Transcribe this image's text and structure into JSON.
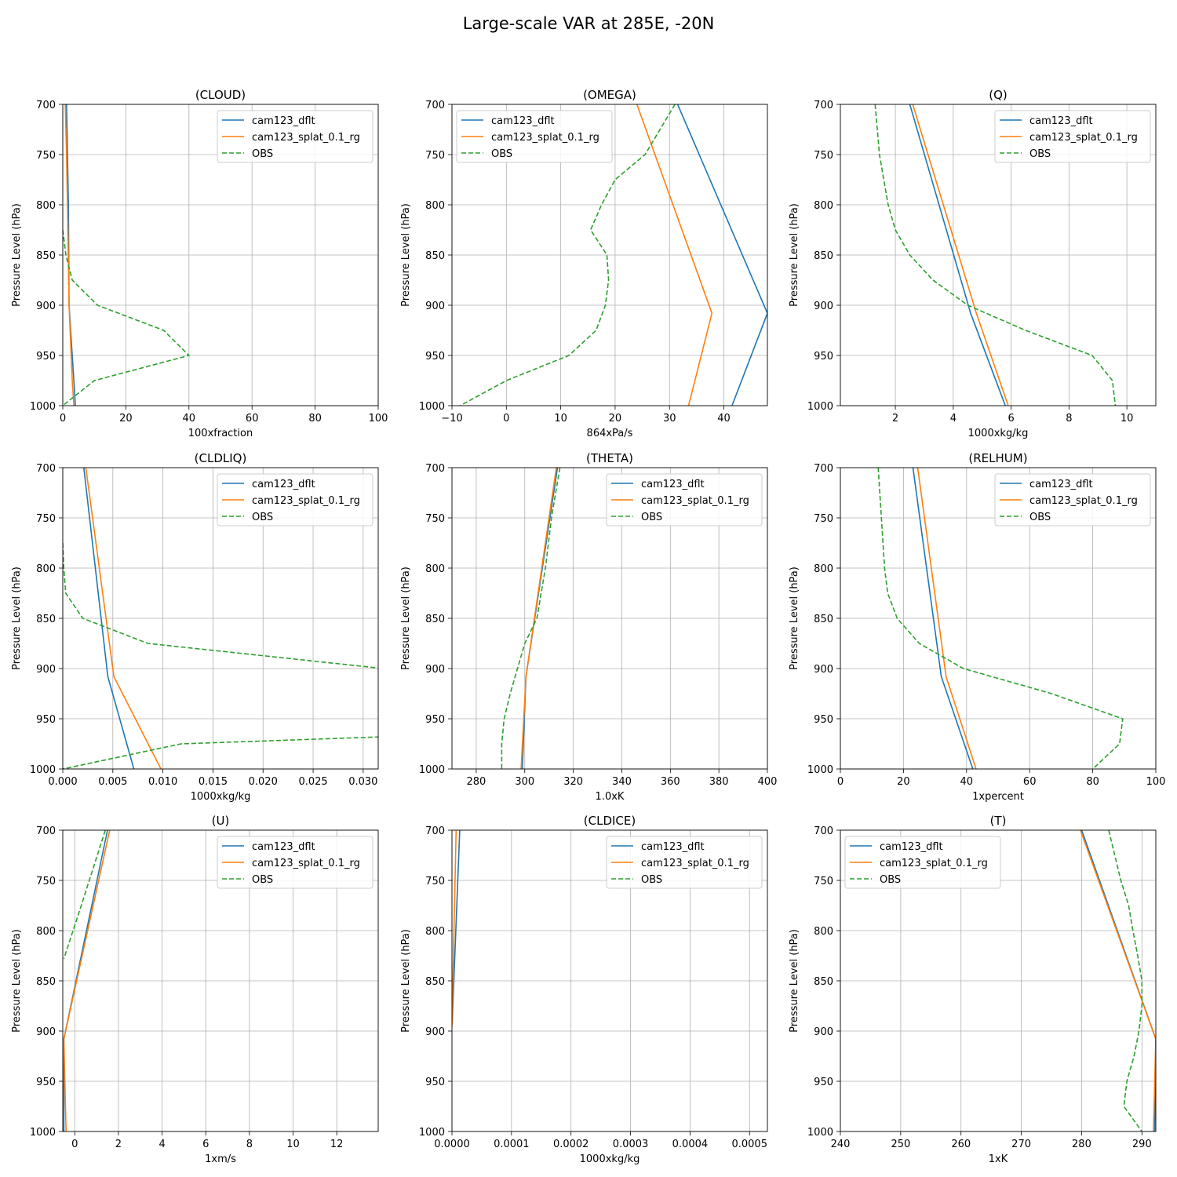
{
  "figure": {
    "title": "Large-scale VAR at 285E, -20N"
  },
  "legend_labels": [
    "cam123_dflt",
    "cam123_splat_0.1_rg",
    "OBS"
  ],
  "colors": {
    "dflt": "#1f77b4",
    "splat": "#ff7f0e",
    "obs": "#2ca02c",
    "grid": "#b0b0b0"
  },
  "chart_data": [
    {
      "type": "line",
      "title": "(CLOUD)",
      "xlabel": "100xfraction",
      "ylabel": "Pressure Level (hPa)",
      "xlim": [
        0,
        100
      ],
      "xticks": [
        0,
        20,
        40,
        60,
        80,
        100
      ],
      "xtick_labels": [
        "0",
        "20",
        "40",
        "60",
        "80",
        "100"
      ],
      "ylim": [
        1000,
        700
      ],
      "yticks": [
        700,
        750,
        800,
        850,
        900,
        950,
        1000
      ],
      "legend": "top-right",
      "series": [
        {
          "name": "cam123_dflt",
          "style": "solid",
          "x": [
            1.2,
            1.5,
            1.8,
            2.0,
            3.5,
            4.0
          ],
          "y": [
            700,
            750,
            800,
            900,
            975,
            1000
          ]
        },
        {
          "name": "cam123_splat_0.1_rg",
          "style": "solid",
          "x": [
            0.8,
            1.2,
            1.5,
            2.0,
            3.0,
            3.5
          ],
          "y": [
            700,
            750,
            800,
            900,
            975,
            1000
          ]
        },
        {
          "name": "OBS",
          "style": "dashed",
          "x": [
            0,
            1,
            3,
            11,
            32,
            40,
            10,
            0
          ],
          "y": [
            825,
            850,
            875,
            900,
            925,
            950,
            975,
            1000
          ]
        }
      ]
    },
    {
      "type": "line",
      "title": "(OMEGA)",
      "xlabel": "864xPa/s",
      "ylabel": "Pressure Level (hPa)",
      "xlim": [
        -10,
        48
      ],
      "xticks": [
        -10,
        0,
        10,
        20,
        30,
        40
      ],
      "xtick_labels": [
        "−10",
        "0",
        "10",
        "20",
        "30",
        "40"
      ],
      "ylim": [
        1000,
        700
      ],
      "yticks": [
        700,
        750,
        800,
        850,
        900,
        950,
        1000
      ],
      "legend": "top-left",
      "series": [
        {
          "name": "cam123_dflt",
          "style": "solid",
          "x": [
            31.5,
            48,
            41.5
          ],
          "y": [
            700,
            908,
            1000
          ]
        },
        {
          "name": "cam123_splat_0.1_rg",
          "style": "solid",
          "x": [
            24,
            37.8,
            33.5
          ],
          "y": [
            700,
            908,
            1000
          ]
        },
        {
          "name": "OBS",
          "style": "dashed",
          "x": [
            31,
            25.5,
            20,
            17.5,
            15.5,
            18.5,
            18.8,
            18.2,
            16.5,
            11.5,
            0,
            -8.5
          ],
          "y": [
            700,
            750,
            775,
            800,
            825,
            850,
            875,
            900,
            925,
            950,
            975,
            1000
          ]
        }
      ]
    },
    {
      "type": "line",
      "title": "(Q)",
      "xlabel": "1000xkg/kg",
      "ylabel": "Pressure Level (hPa)",
      "xlim": [
        0.1,
        11
      ],
      "xticks": [
        2,
        4,
        6,
        8,
        10
      ],
      "xtick_labels": [
        "2",
        "4",
        "6",
        "8",
        "10"
      ],
      "ylim": [
        1000,
        700
      ],
      "yticks": [
        700,
        750,
        800,
        850,
        900,
        950,
        1000
      ],
      "legend": "top-right",
      "series": [
        {
          "name": "cam123_dflt",
          "style": "solid",
          "x": [
            2.5,
            4.6,
            5.8
          ],
          "y": [
            700,
            908,
            1000
          ]
        },
        {
          "name": "cam123_splat_0.1_rg",
          "style": "solid",
          "x": [
            2.6,
            4.8,
            5.9
          ],
          "y": [
            700,
            908,
            1000
          ]
        },
        {
          "name": "OBS",
          "style": "dashed",
          "x": [
            1.3,
            1.45,
            1.6,
            1.75,
            2.0,
            2.5,
            3.3,
            4.5,
            6.5,
            8.8,
            9.5,
            9.6
          ],
          "y": [
            700,
            750,
            775,
            800,
            825,
            850,
            875,
            900,
            925,
            950,
            975,
            1000
          ]
        }
      ]
    },
    {
      "type": "line",
      "title": "(CLDLIQ)",
      "xlabel": "1000xkg/kg",
      "ylabel": "Pressure Level (hPa)",
      "xlim": [
        0,
        0.0315
      ],
      "xticks": [
        0,
        0.005,
        0.01,
        0.015,
        0.02,
        0.025,
        0.03
      ],
      "xtick_labels": [
        "0.000",
        "0.005",
        "0.010",
        "0.015",
        "0.020",
        "0.025",
        "0.030"
      ],
      "ylim": [
        1000,
        700
      ],
      "yticks": [
        700,
        750,
        800,
        850,
        900,
        950,
        1000
      ],
      "legend": "top-right",
      "series": [
        {
          "name": "cam123_dflt",
          "style": "solid",
          "x": [
            0.0021,
            0.0045,
            0.0071
          ],
          "y": [
            700,
            908,
            1000
          ]
        },
        {
          "name": "cam123_splat_0.1_rg",
          "style": "solid",
          "x": [
            0.0023,
            0.0051,
            0.0098
          ],
          "y": [
            700,
            908,
            1000
          ]
        },
        {
          "name": "OBS",
          "style": "dashed",
          "x": [
            0,
            0.0001,
            0.0003,
            0.002,
            0.0085,
            0.032,
            0.032,
            0.0118,
            0
          ],
          "y": [
            775,
            800,
            825,
            850,
            875,
            900,
            968,
            975,
            1000
          ]
        }
      ]
    },
    {
      "type": "line",
      "title": "(THETA)",
      "xlabel": "1.0xK",
      "ylabel": "Pressure Level (hPa)",
      "xlim": [
        270,
        400
      ],
      "xticks": [
        280,
        300,
        320,
        340,
        360,
        380,
        400
      ],
      "xtick_labels": [
        "280",
        "300",
        "320",
        "340",
        "360",
        "380",
        "400"
      ],
      "ylim": [
        1000,
        700
      ],
      "yticks": [
        700,
        750,
        800,
        850,
        900,
        950,
        1000
      ],
      "legend": "top-right",
      "series": [
        {
          "name": "cam123_dflt",
          "style": "solid",
          "x": [
            313.5,
            300.5,
            299
          ],
          "y": [
            700,
            908,
            1000
          ]
        },
        {
          "name": "cam123_splat_0.1_rg",
          "style": "solid",
          "x": [
            313,
            300.5,
            298.5
          ],
          "y": [
            700,
            908,
            1000
          ]
        },
        {
          "name": "OBS",
          "style": "dashed",
          "x": [
            314.5,
            311,
            308.5,
            305,
            300,
            297,
            294,
            291.5,
            290.5,
            290.5,
            290.5
          ],
          "y": [
            700,
            750,
            800,
            850,
            875,
            900,
            925,
            950,
            975,
            990,
            1000
          ]
        }
      ]
    },
    {
      "type": "line",
      "title": "(RELHUM)",
      "xlabel": "1xpercent",
      "ylabel": "Pressure Level (hPa)",
      "xlim": [
        0,
        100
      ],
      "xticks": [
        0,
        20,
        40,
        60,
        80,
        100
      ],
      "xtick_labels": [
        "0",
        "20",
        "40",
        "60",
        "80",
        "100"
      ],
      "ylim": [
        1000,
        700
      ],
      "yticks": [
        700,
        750,
        800,
        850,
        900,
        950,
        1000
      ],
      "legend": "top-right",
      "series": [
        {
          "name": "cam123_dflt",
          "style": "solid",
          "x": [
            23,
            32,
            42
          ],
          "y": [
            700,
            908,
            1000
          ]
        },
        {
          "name": "cam123_splat_0.1_rg",
          "style": "solid",
          "x": [
            24.5,
            33.5,
            43
          ],
          "y": [
            700,
            908,
            1000
          ]
        },
        {
          "name": "OBS",
          "style": "dashed",
          "x": [
            12,
            13,
            14,
            15,
            18,
            25,
            39,
            67,
            89.5,
            88.5,
            80
          ],
          "y": [
            700,
            750,
            800,
            825,
            850,
            875,
            900,
            925,
            950,
            975,
            1000
          ]
        }
      ]
    },
    {
      "type": "line",
      "title": "(U)",
      "xlabel": "1xm/s",
      "ylabel": "Pressure Level (hPa)",
      "xlim": [
        -0.55,
        13.9
      ],
      "xticks": [
        0,
        2,
        4,
        6,
        8,
        10,
        12
      ],
      "xtick_labels": [
        "0",
        "2",
        "4",
        "6",
        "8",
        "10",
        "12"
      ],
      "ylim": [
        1000,
        700
      ],
      "yticks": [
        700,
        750,
        800,
        850,
        900,
        950,
        1000
      ],
      "legend": "top-right",
      "series": [
        {
          "name": "cam123_dflt",
          "style": "solid",
          "x": [
            1.5,
            -0.5,
            -0.5
          ],
          "y": [
            700,
            908,
            1000
          ]
        },
        {
          "name": "cam123_splat_0.1_rg",
          "style": "solid",
          "x": [
            1.6,
            -0.5,
            -0.4
          ],
          "y": [
            700,
            908,
            1000
          ]
        },
        {
          "name": "OBS",
          "style": "dashed",
          "x": [
            1.4,
            0.3,
            -0.5
          ],
          "y": [
            700,
            775,
            828
          ]
        }
      ]
    },
    {
      "type": "line",
      "title": "(CLDICE)",
      "xlabel": "1000xkg/kg",
      "ylabel": "Pressure Level (hPa)",
      "xlim": [
        0,
        0.00053
      ],
      "xticks": [
        0,
        0.0001,
        0.0002,
        0.0003,
        0.0004,
        0.0005
      ],
      "xtick_labels": [
        "0.0000",
        "0.0001",
        "0.0002",
        "0.0003",
        "0.0004",
        "0.0005"
      ],
      "ylim": [
        1000,
        700
      ],
      "yticks": [
        700,
        750,
        800,
        850,
        900,
        950,
        1000
      ],
      "legend": "top-right",
      "series": [
        {
          "name": "cam123_dflt",
          "style": "solid",
          "x": [
            1.3e-05,
            5e-07
          ],
          "y": [
            700,
            890
          ]
        },
        {
          "name": "cam123_splat_0.1_rg",
          "style": "solid",
          "x": [
            7e-06,
            0
          ],
          "y": [
            700,
            895
          ]
        },
        {
          "name": "OBS",
          "style": "dashed",
          "x": [],
          "y": []
        }
      ]
    },
    {
      "type": "line",
      "title": "(T)",
      "xlabel": "1xK",
      "ylabel": "Pressure Level (hPa)",
      "xlim": [
        240,
        292.3
      ],
      "xticks": [
        240,
        250,
        260,
        270,
        280,
        290
      ],
      "xtick_labels": [
        "240",
        "250",
        "260",
        "270",
        "280",
        "290"
      ],
      "ylim": [
        1000,
        700
      ],
      "yticks": [
        700,
        750,
        800,
        850,
        900,
        950,
        1000
      ],
      "legend": "top-left",
      "series": [
        {
          "name": "cam123_dflt",
          "style": "solid",
          "x": [
            280,
            292.3,
            292.1
          ],
          "y": [
            700,
            908,
            1000
          ]
        },
        {
          "name": "cam123_splat_0.1_rg",
          "style": "solid",
          "x": [
            279.8,
            292.3,
            291.9
          ],
          "y": [
            700,
            908,
            1000
          ]
        },
        {
          "name": "OBS",
          "style": "dashed",
          "x": [
            284.5,
            286.5,
            287.8,
            288.5,
            289.3,
            290,
            290,
            289.5,
            288.7,
            287.5,
            287,
            290
          ],
          "y": [
            700,
            750,
            775,
            800,
            825,
            850,
            875,
            900,
            925,
            950,
            975,
            1000
          ]
        }
      ]
    }
  ]
}
